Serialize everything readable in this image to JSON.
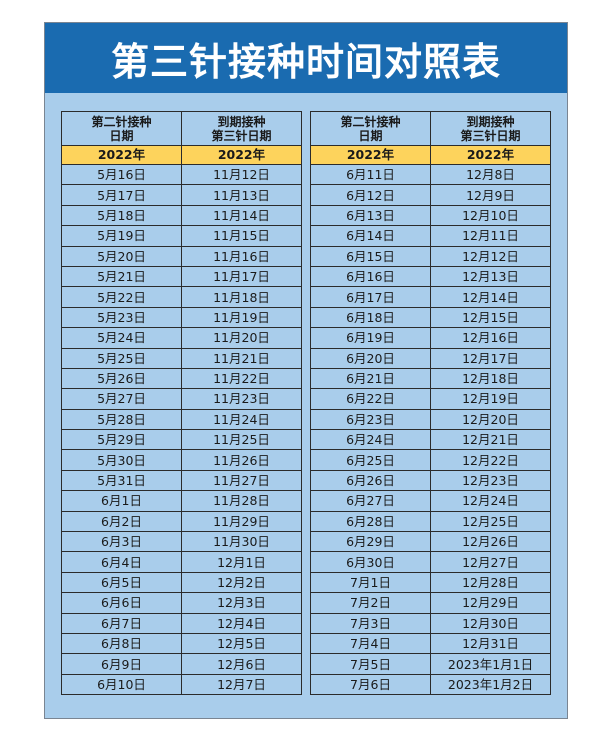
{
  "title": "第三针接种时间对照表",
  "headers": {
    "col1_line1": "第二针接种",
    "col1_line2": "日期",
    "col2_line1": "到期接种",
    "col2_line2": "第三针日期",
    "year": "2022年"
  },
  "colors": {
    "banner": "#1a6bb0",
    "background": "#a9cdeb",
    "year_row": "#fdd35c"
  },
  "left_rows": [
    [
      "5月16日",
      "11月12日"
    ],
    [
      "5月17日",
      "11月13日"
    ],
    [
      "5月18日",
      "11月14日"
    ],
    [
      "5月19日",
      "11月15日"
    ],
    [
      "5月20日",
      "11月16日"
    ],
    [
      "5月21日",
      "11月17日"
    ],
    [
      "5月22日",
      "11月18日"
    ],
    [
      "5月23日",
      "11月19日"
    ],
    [
      "5月24日",
      "11月20日"
    ],
    [
      "5月25日",
      "11月21日"
    ],
    [
      "5月26日",
      "11月22日"
    ],
    [
      "5月27日",
      "11月23日"
    ],
    [
      "5月28日",
      "11月24日"
    ],
    [
      "5月29日",
      "11月25日"
    ],
    [
      "5月30日",
      "11月26日"
    ],
    [
      "5月31日",
      "11月27日"
    ],
    [
      "6月1日",
      "11月28日"
    ],
    [
      "6月2日",
      "11月29日"
    ],
    [
      "6月3日",
      "11月30日"
    ],
    [
      "6月4日",
      "12月1日"
    ],
    [
      "6月5日",
      "12月2日"
    ],
    [
      "6月6日",
      "12月3日"
    ],
    [
      "6月7日",
      "12月4日"
    ],
    [
      "6月8日",
      "12月5日"
    ],
    [
      "6月9日",
      "12月6日"
    ],
    [
      "6月10日",
      "12月7日"
    ]
  ],
  "right_rows": [
    [
      "6月11日",
      "12月8日"
    ],
    [
      "6月12日",
      "12月9日"
    ],
    [
      "6月13日",
      "12月10日"
    ],
    [
      "6月14日",
      "12月11日"
    ],
    [
      "6月15日",
      "12月12日"
    ],
    [
      "6月16日",
      "12月13日"
    ],
    [
      "6月17日",
      "12月14日"
    ],
    [
      "6月18日",
      "12月15日"
    ],
    [
      "6月19日",
      "12月16日"
    ],
    [
      "6月20日",
      "12月17日"
    ],
    [
      "6月21日",
      "12月18日"
    ],
    [
      "6月22日",
      "12月19日"
    ],
    [
      "6月23日",
      "12月20日"
    ],
    [
      "6月24日",
      "12月21日"
    ],
    [
      "6月25日",
      "12月22日"
    ],
    [
      "6月26日",
      "12月23日"
    ],
    [
      "6月27日",
      "12月24日"
    ],
    [
      "6月28日",
      "12月25日"
    ],
    [
      "6月29日",
      "12月26日"
    ],
    [
      "6月30日",
      "12月27日"
    ],
    [
      "7月1日",
      "12月28日"
    ],
    [
      "7月2日",
      "12月29日"
    ],
    [
      "7月3日",
      "12月30日"
    ],
    [
      "7月4日",
      "12月31日"
    ],
    [
      "7月5日",
      "2023年1月1日"
    ],
    [
      "7月6日",
      "2023年1月2日"
    ]
  ]
}
